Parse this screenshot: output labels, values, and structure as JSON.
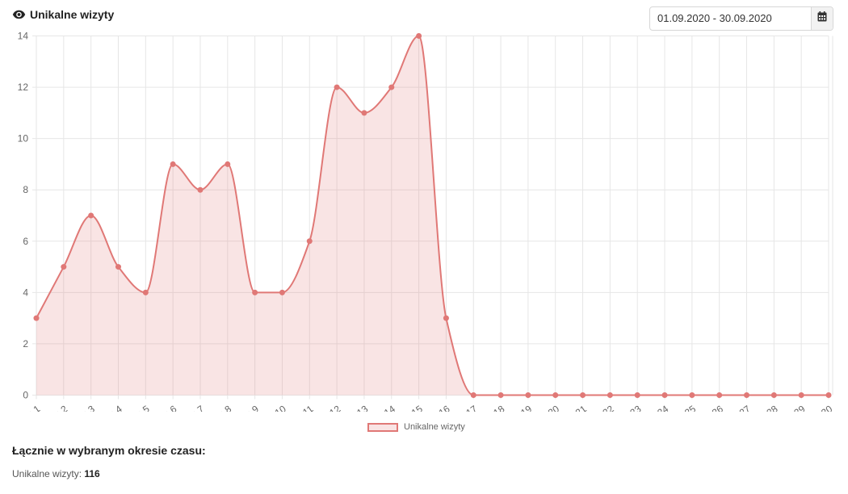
{
  "header": {
    "title": "Unikalne wizyty",
    "icon": "eye-icon"
  },
  "date_picker": {
    "value": "01.09.2020 - 30.09.2020",
    "icon": "calendar-icon"
  },
  "chart_data": {
    "type": "area",
    "categories": [
      "Sep 1",
      "Sep 2",
      "Sep 3",
      "Sep 4",
      "Sep 5",
      "Sep 6",
      "Sep 7",
      "Sep 8",
      "Sep 9",
      "Sep 10",
      "Sep 11",
      "Sep 12",
      "Sep 13",
      "Sep 14",
      "Sep 15",
      "Sep 16",
      "Sep 17",
      "Sep 18",
      "Sep 19",
      "Sep 20",
      "Sep 21",
      "Sep 22",
      "Sep 23",
      "Sep 24",
      "Sep 25",
      "Sep 26",
      "Sep 27",
      "Sep 28",
      "Sep 29",
      "Sep 30"
    ],
    "series": [
      {
        "name": "Unikalne wizyty",
        "values": [
          3,
          5,
          7,
          5,
          4,
          9,
          8,
          9,
          4,
          4,
          6,
          12,
          11,
          12,
          14,
          3,
          0,
          0,
          0,
          0,
          0,
          0,
          0,
          0,
          0,
          0,
          0,
          0,
          0,
          0
        ],
        "color": "#e07876"
      }
    ],
    "ylim": [
      0,
      14
    ],
    "yticks": [
      0,
      2,
      4,
      6,
      8,
      10,
      12,
      14
    ],
    "grid": true,
    "legend_position": "bottom"
  },
  "summary": {
    "title": "Łącznie w wybranym okresie czasu:",
    "label": "Unikalne wizyty:",
    "total": "116"
  }
}
